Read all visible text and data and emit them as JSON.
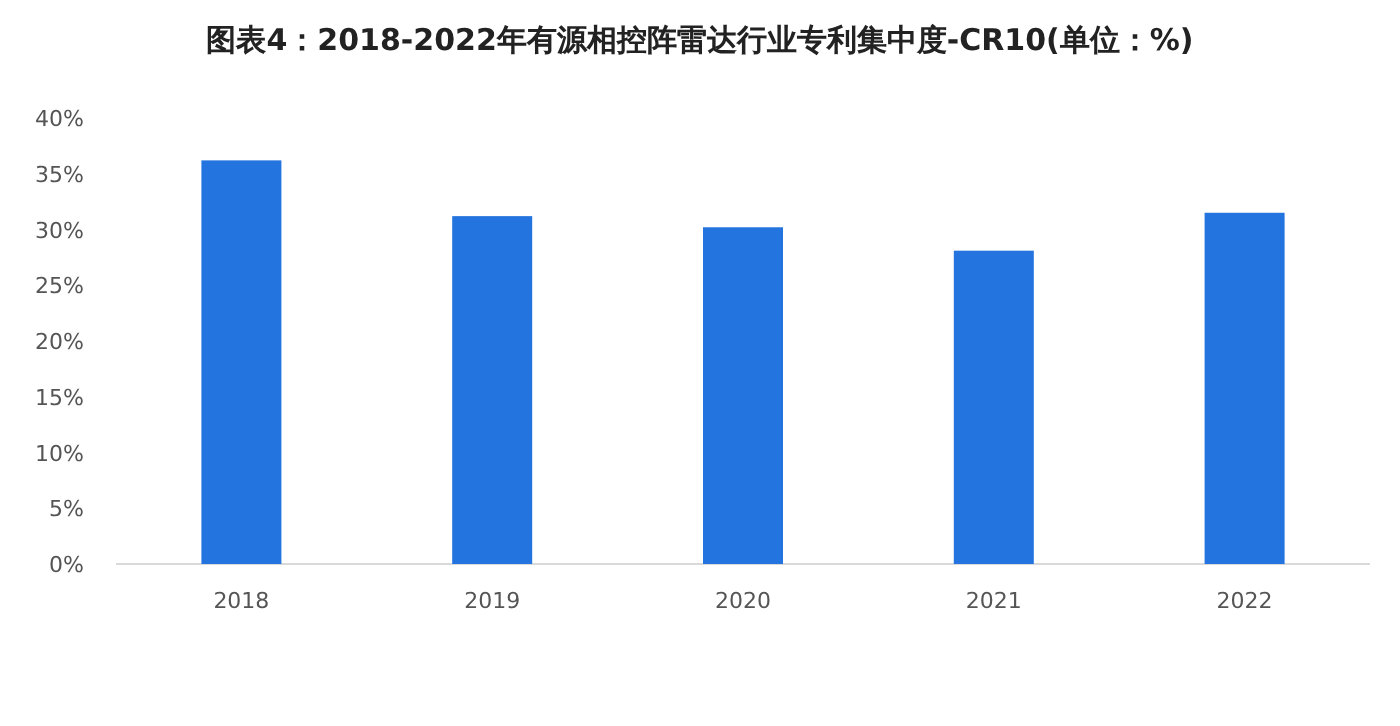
{
  "chart_data": {
    "type": "bar",
    "title": "图表4：2018-2022年有源相控阵雷达行业专利集中度-CR10(单位：%)",
    "categories": [
      "2018",
      "2019",
      "2020",
      "2021",
      "2022"
    ],
    "values": [
      36.2,
      31.2,
      30.2,
      28.1,
      31.5
    ],
    "color": "#2474e0",
    "ylim": [
      0,
      40
    ],
    "yticks": [
      {
        "value": 0,
        "label": "0%"
      },
      {
        "value": 5,
        "label": "5%"
      },
      {
        "value": 10,
        "label": "10%"
      },
      {
        "value": 15,
        "label": "15%"
      },
      {
        "value": 20,
        "label": "20%"
      },
      {
        "value": 25,
        "label": "25%"
      },
      {
        "value": 30,
        "label": "30%"
      },
      {
        "value": 35,
        "label": "35%"
      },
      {
        "value": 40,
        "label": "40%"
      }
    ],
    "grid": false
  }
}
